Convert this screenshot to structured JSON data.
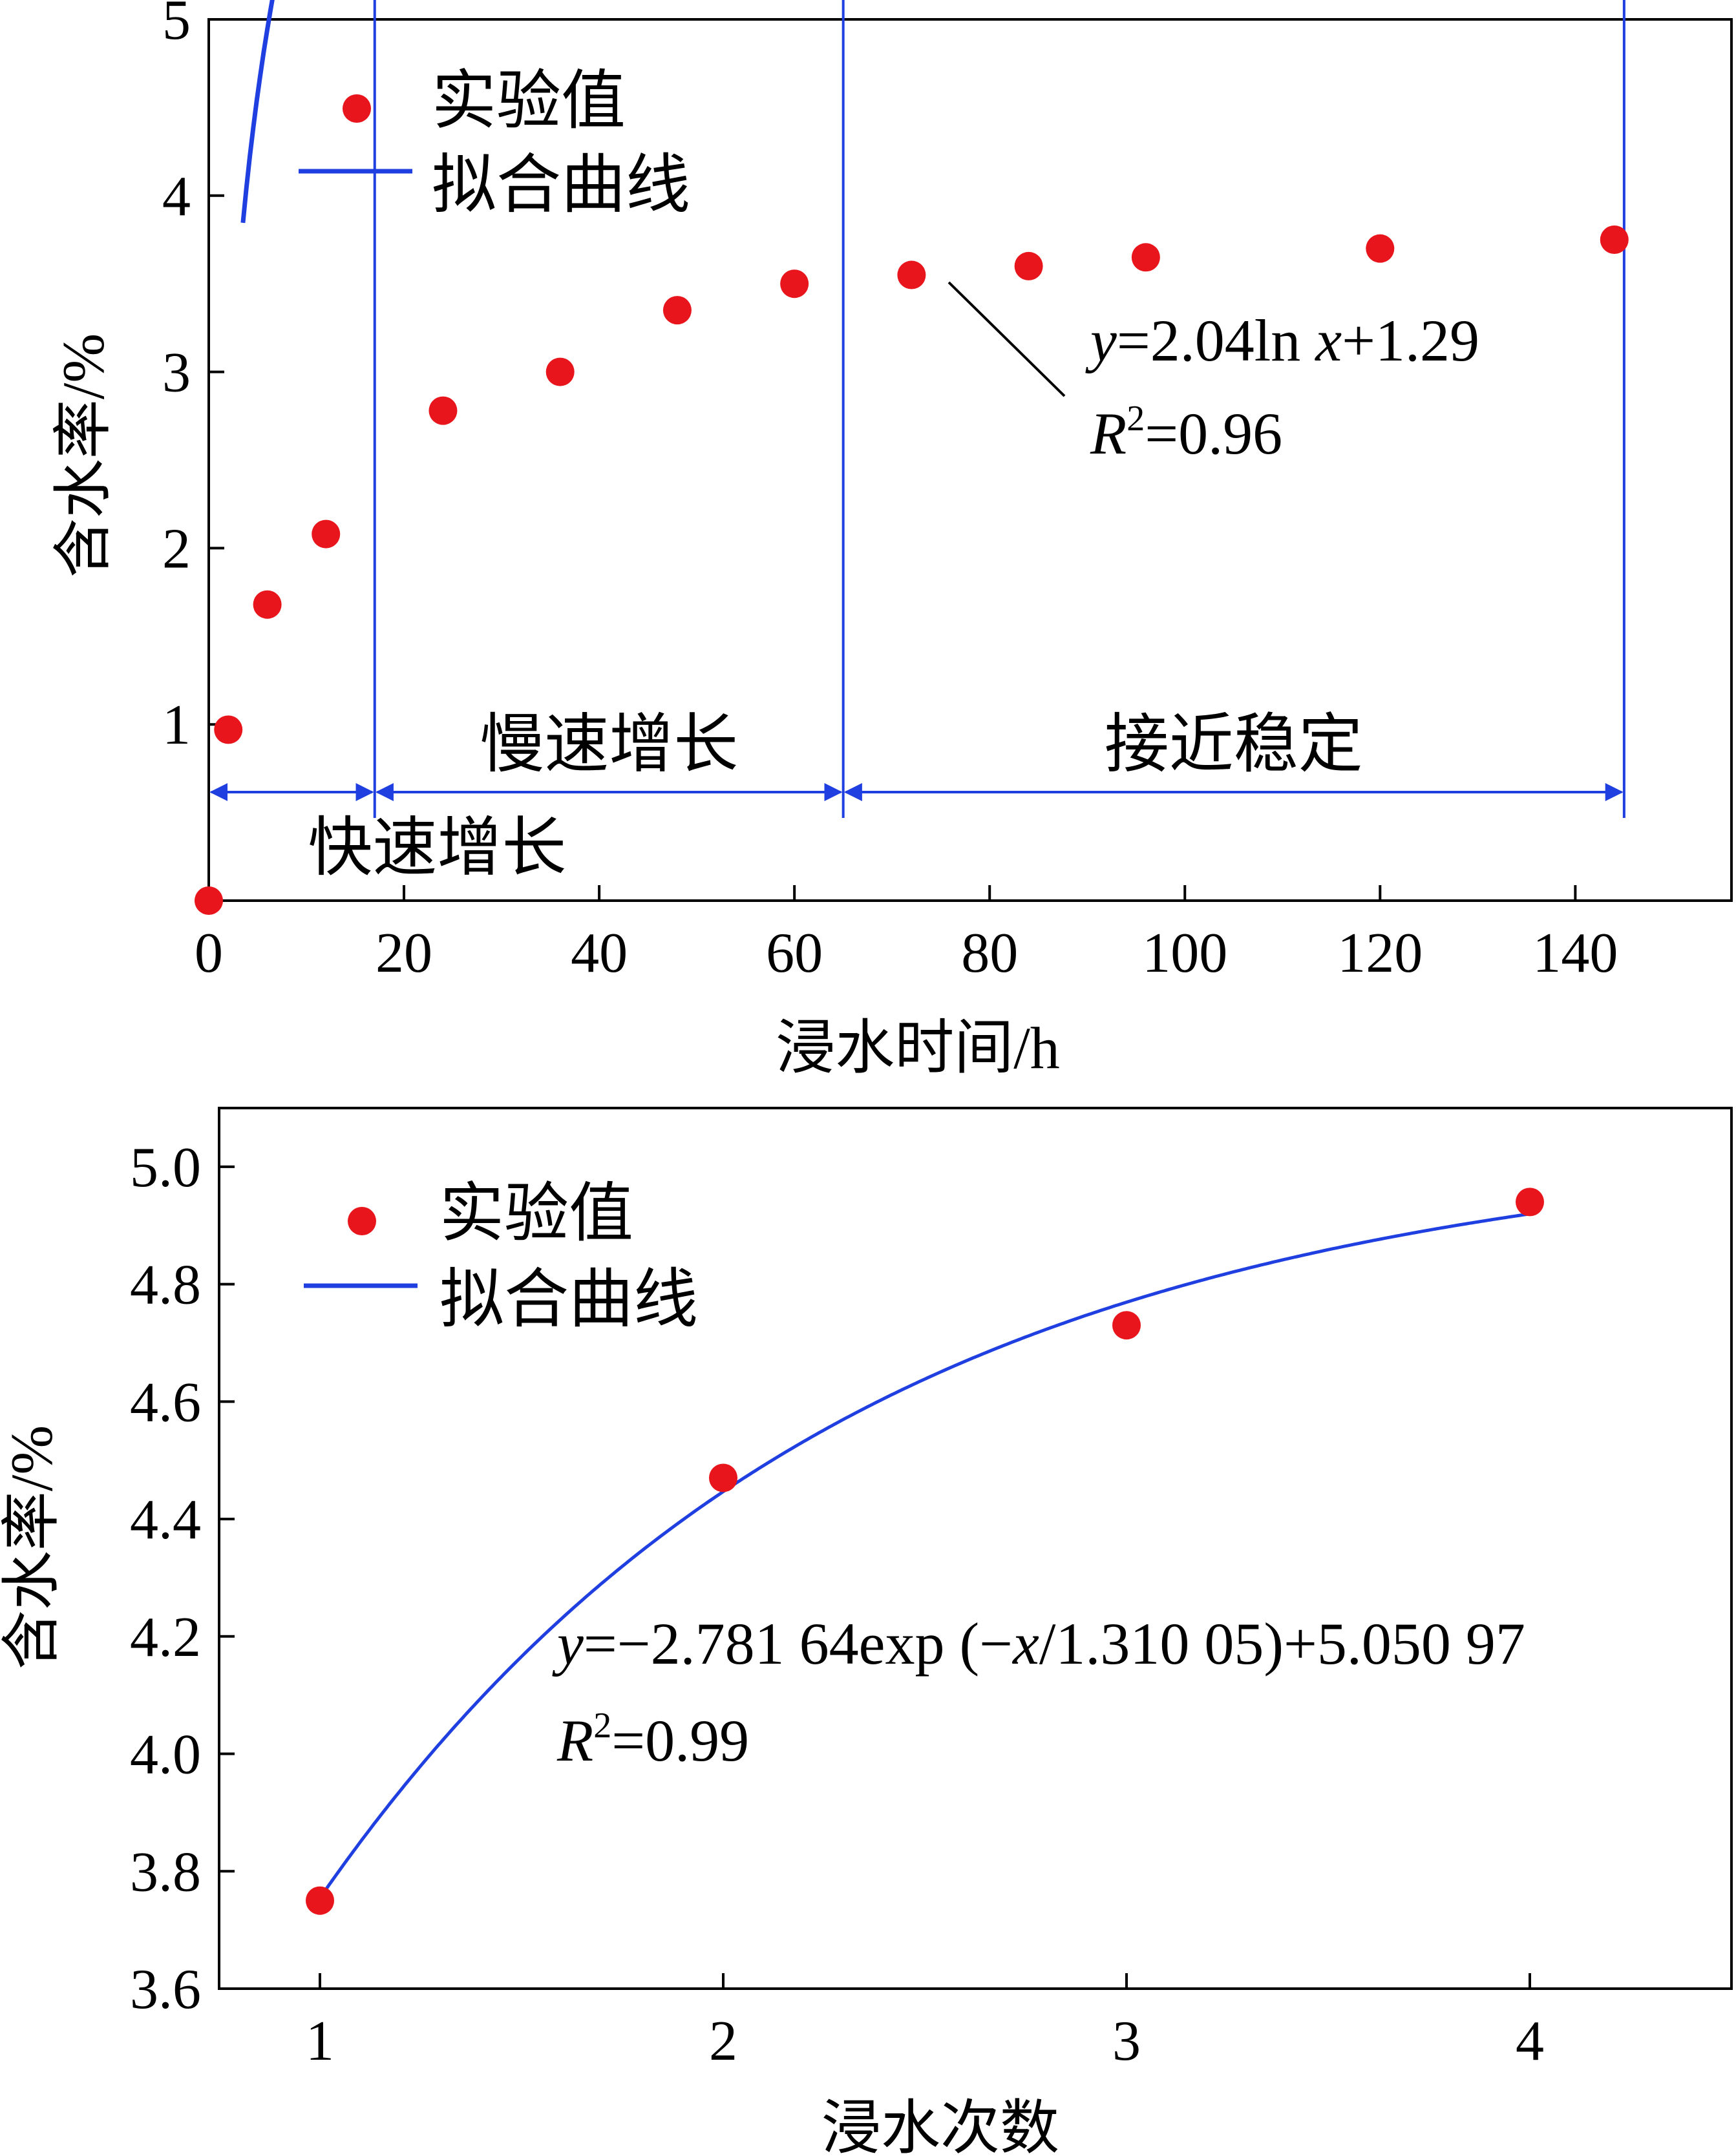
{
  "colors": {
    "points": "#e8161c",
    "fit_line": "#1f3fe0",
    "axes": "#000000"
  },
  "chart_data": [
    {
      "type": "scatter",
      "xlabel": "浸水时间/h",
      "ylabel": "含水率/%",
      "xlim": [
        0,
        156
      ],
      "ylim": [
        0,
        5
      ],
      "xticks": [
        0,
        20,
        40,
        60,
        80,
        100,
        120,
        140
      ],
      "yticks": [
        1,
        2,
        3,
        4,
        5
      ],
      "x_tick_labels": [
        "0",
        "20",
        "40",
        "60",
        "80",
        "100",
        "120",
        "140"
      ],
      "y_tick_labels": [
        "1",
        "2",
        "3",
        "4",
        "5"
      ],
      "legend": {
        "position": "top-left",
        "points_label": "实验值",
        "line_label": "拟合曲线"
      },
      "series": [
        {
          "name": "实验值",
          "kind": "points",
          "x": [
            0,
            2,
            6,
            12,
            24,
            36,
            48,
            60,
            72,
            84,
            96,
            120,
            144
          ],
          "y": [
            0,
            0.97,
            1.68,
            2.08,
            2.78,
            3.0,
            3.35,
            3.5,
            3.55,
            3.6,
            3.65,
            3.7,
            3.75
          ]
        },
        {
          "name": "拟合曲线",
          "kind": "fit",
          "model": "log",
          "a": 2.04,
          "b": 1.29,
          "x_range": [
            3.5,
            145
          ]
        }
      ],
      "equation": {
        "y": "y",
        "rhs_1": "=2.04ln ",
        "x": "x",
        "rhs_2": "+1.29"
      },
      "r2": {
        "r": "R",
        "sup": "2",
        "value": "=0.96"
      },
      "stages": {
        "boundaries": [
          17,
          65,
          145
        ],
        "labels": [
          "快速增长",
          "慢速增长",
          "接近稳定"
        ]
      }
    },
    {
      "type": "scatter",
      "xlabel": "浸水次数",
      "ylabel": "含水率/%",
      "xlim": [
        0.75,
        4.5
      ],
      "ylim": [
        3.6,
        5.1
      ],
      "xticks": [
        1,
        2,
        3,
        4
      ],
      "yticks": [
        3.6,
        3.8,
        4.0,
        4.2,
        4.4,
        4.6,
        4.8,
        5.0
      ],
      "x_tick_labels": [
        "1",
        "2",
        "3",
        "4"
      ],
      "y_tick_labels": [
        "3.6",
        "3.8",
        "4.0",
        "4.2",
        "4.4",
        "4.6",
        "4.8",
        "5.0"
      ],
      "legend": {
        "position": "top-left",
        "points_label": "实验值",
        "line_label": "拟合曲线"
      },
      "series": [
        {
          "name": "实验值",
          "kind": "points",
          "x": [
            1,
            2,
            3,
            4
          ],
          "y": [
            3.75,
            4.47,
            4.73,
            4.94
          ]
        },
        {
          "name": "拟合曲线",
          "kind": "fit",
          "model": "exp",
          "a": -2.78164,
          "t": 1.31005,
          "c": 5.05097,
          "x_range": [
            1,
            4
          ]
        }
      ],
      "equation": {
        "y": "y",
        "rhs_1": "=−2.781 64exp (−",
        "x": "x",
        "rhs_2": "/1.310 05)+5.050 97"
      },
      "r2": {
        "r": "R",
        "sup": "2",
        "value": "=0.99"
      }
    }
  ]
}
